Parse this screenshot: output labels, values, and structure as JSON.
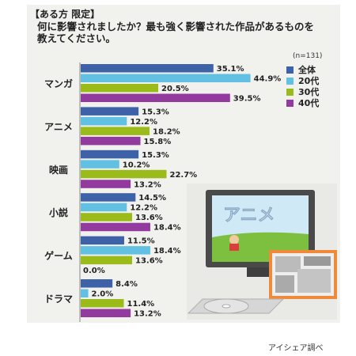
{
  "header": {
    "tag": "【ある方 限定】",
    "question_line1": "何に影響されましたか？最も強く影響された作品があるものを",
    "question_line2": "教えてください。",
    "sample_size": "(n=131)"
  },
  "illustration": {
    "tv_text": "アニメ"
  },
  "footer": {
    "credit": "アイシェア調べ"
  },
  "colors": {
    "all": "#3d62a8",
    "20s": "#62c1e2",
    "30s": "#9bbb1a",
    "40s": "#923a9e"
  },
  "chart_data": {
    "type": "bar",
    "orientation": "horizontal",
    "categories": [
      "マンガ",
      "アニメ",
      "映画",
      "小説",
      "ゲーム",
      "ドラマ"
    ],
    "series": [
      {
        "name": "全体",
        "values": [
          35.1,
          15.3,
          15.3,
          14.5,
          11.5,
          8.4
        ],
        "labels": [
          "35.1%",
          "15.3%",
          "15.3%",
          "14.5%",
          "11.5%",
          "8.4%"
        ]
      },
      {
        "name": "20代",
        "values": [
          44.9,
          12.2,
          10.2,
          12.2,
          18.4,
          2.0
        ],
        "labels": [
          "44.9%",
          "12.2%",
          "10.2%",
          "12.2%",
          "18.4%",
          "2.0%"
        ]
      },
      {
        "name": "30代",
        "values": [
          20.5,
          18.2,
          22.7,
          13.6,
          13.6,
          11.4
        ],
        "labels": [
          "20.5%",
          "18.2%",
          "22.7%",
          "13.6%",
          "13.6%",
          "11.4%"
        ]
      },
      {
        "name": "40代",
        "values": [
          39.5,
          15.8,
          13.2,
          18.4,
          0.0,
          13.2
        ],
        "labels": [
          "39.5%",
          "15.8%",
          "13.2%",
          "18.4%",
          "0.0%",
          "13.2%"
        ]
      }
    ],
    "xlim": [
      0,
      50
    ],
    "grid": false,
    "legend_position": "top-right"
  }
}
